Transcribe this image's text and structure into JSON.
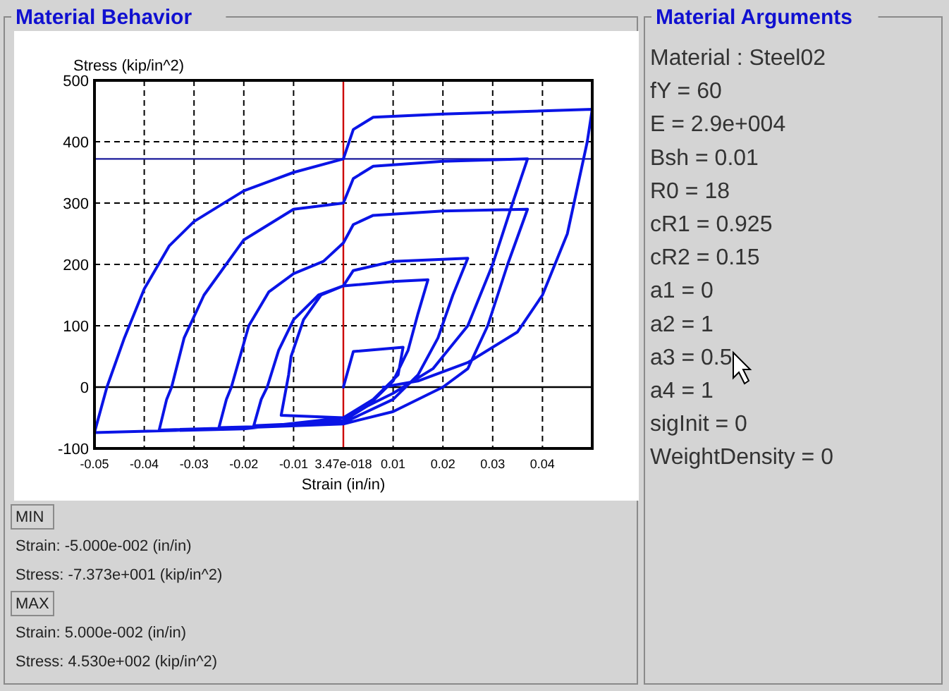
{
  "chart_data": [
    {
      "type": "line",
      "title": "Material Behavior",
      "xlabel": "Strain (in/in)",
      "ylabel": "Stress (kip/in^2)",
      "xlim": [
        -0.05,
        0.05
      ],
      "ylim": [
        -100,
        500
      ],
      "xticks": [
        -0.05,
        -0.04,
        -0.03,
        -0.02,
        -0.01,
        {
          "value": 0,
          "label": "3.47e-018"
        },
        0.01,
        0.02,
        0.03,
        0.04,
        {
          "value": 0.05,
          "label": null
        }
      ],
      "yticks": [
        -100,
        0,
        100,
        200,
        300,
        400,
        500
      ],
      "grid": true,
      "line_style": "solid",
      "ref_lines": [
        {
          "axis": "x",
          "value": 0,
          "color": "#cc0000"
        },
        {
          "axis": "y",
          "value": 372,
          "color": "#1a1a9a"
        },
        {
          "axis": "y",
          "value": 0,
          "color": "#000000"
        }
      ],
      "series": [
        {
          "color": "#0a14e6",
          "x": [
            0,
            0.002,
            0.012,
            0.011,
            0.006,
            0,
            -0.0125,
            -0.011,
            -0.0105,
            -0.008,
            -0.0045,
            0,
            0.01,
            0.017,
            0.015,
            0.013,
            0.01,
            0.005,
            0,
            -0.01,
            -0.018,
            -0.0165,
            -0.0153,
            -0.013,
            -0.01,
            -0.005,
            0,
            0.002,
            0.01,
            0.025,
            0.022,
            0.019,
            0.015,
            0.01,
            0,
            -0.01,
            -0.025,
            -0.0235,
            -0.0225,
            -0.019,
            -0.015,
            -0.01,
            -0.004,
            0,
            0.002,
            0.006,
            0.02,
            0.037,
            0.033,
            0.029,
            0.025,
            0.02,
            0.01,
            0,
            -0.02,
            -0.037,
            -0.0355,
            -0.0345,
            -0.032,
            -0.028,
            -0.02,
            -0.01,
            0,
            0.002,
            0.006,
            0.02,
            0.037,
            0.034,
            0.03,
            0.025,
            0.018,
            0.01,
            0,
            -0.02,
            -0.05,
            -0.0475,
            -0.044,
            -0.04,
            -0.035,
            -0.03,
            -0.02,
            -0.01,
            0,
            0.002,
            0.006,
            0.02,
            0.05,
            0.049,
            0.045,
            0.04,
            0.035,
            0.025,
            0.015,
            0.008
          ],
          "values": [
            0,
            58,
            65,
            20,
            -20,
            -50,
            -46,
            20,
            50,
            110,
            150,
            165,
            172,
            175,
            120,
            60,
            10,
            -30,
            -55,
            -60,
            -63,
            -20,
            0,
            60,
            110,
            150,
            165,
            190,
            205,
            210,
            150,
            80,
            20,
            -20,
            -58,
            -63,
            -66,
            -20,
            0,
            100,
            155,
            185,
            205,
            235,
            265,
            280,
            287,
            290,
            200,
            100,
            30,
            0,
            -40,
            -60,
            -66,
            -70,
            -20,
            0,
            80,
            150,
            240,
            290,
            300,
            340,
            360,
            368,
            372,
            300,
            200,
            100,
            30,
            -10,
            -50,
            -68,
            -74,
            0,
            80,
            160,
            230,
            270,
            320,
            350,
            372,
            420,
            440,
            445,
            453,
            400,
            250,
            150,
            90,
            40,
            10,
            0
          ]
        }
      ],
      "annotations": [
        "MIN",
        "Strain: -5.000e-002 (in/in)",
        "Stress: -7.373e+001 (kip/in^2)",
        "MAX",
        "Strain: 5.000e-002 (in/in)",
        "Stress: 4.530e+002 (kip/in^2)"
      ]
    },
    {
      "type": "other",
      "title": "Material Arguments",
      "annotations": [
        "Material : Steel02",
        "fY = 60",
        "E = 2.9e+004",
        "Bsh = 0.01",
        "R0 = 18",
        "cR1 = 0.925",
        "cR2 = 0.15",
        "a1 = 0",
        "a2 = 1",
        "a3 = 0.5",
        "a4 = 1",
        "sigInit = 0",
        "WeightDensity = 0"
      ]
    }
  ]
}
